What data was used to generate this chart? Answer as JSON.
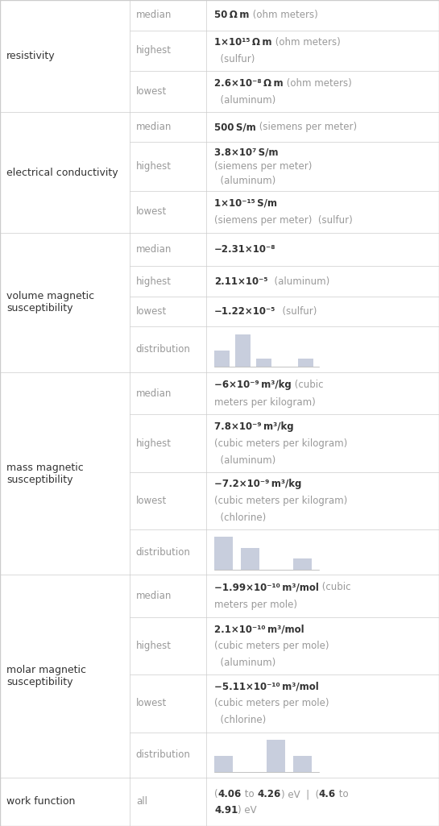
{
  "bg_color": "#ffffff",
  "border_color": "#cccccc",
  "text_dark": "#333333",
  "text_light": "#999999",
  "hist_color": "#c8cedd",
  "c1": 0.295,
  "c2": 0.47,
  "sections": [
    {
      "property": "resistivity",
      "rows": [
        {
          "type": "text",
          "label": "median",
          "bold": "50 Ω m",
          "normal": " (ohm meters)",
          "lines": 1
        },
        {
          "type": "text",
          "label": "highest",
          "bold": "1×10¹⁵ Ω m",
          "normal": " (ohm meters)\n  (sulfur)",
          "lines": 2
        },
        {
          "type": "text",
          "label": "lowest",
          "bold": "2.6×10⁻⁸ Ω m",
          "normal": " (ohm meters)\n  (aluminum)",
          "lines": 2
        }
      ],
      "rh": [
        1.0,
        1.35,
        1.35
      ]
    },
    {
      "property": "electrical conductivity",
      "rows": [
        {
          "type": "text",
          "label": "median",
          "bold": "500 S/m",
          "normal": " (siemens per meter)",
          "lines": 1
        },
        {
          "type": "text",
          "label": "highest",
          "bold": "3.8×10⁷ S/m",
          "normal": "\n(siemens per meter)\n  (aluminum)",
          "lines": 3
        },
        {
          "type": "text",
          "label": "lowest",
          "bold": "1×10⁻¹⁵ S/m",
          "normal": "\n(siemens per meter)  (sulfur)",
          "lines": 2
        }
      ],
      "rh": [
        1.0,
        1.6,
        1.4
      ]
    },
    {
      "property": "volume magnetic\nsusceptibility",
      "rows": [
        {
          "type": "text",
          "label": "median",
          "bold": "−2.31×10⁻⁸",
          "normal": "",
          "lines": 1
        },
        {
          "type": "text",
          "label": "highest",
          "bold": "2.11×10⁻⁵",
          "normal": "  (aluminum)",
          "lines": 1
        },
        {
          "type": "text",
          "label": "lowest",
          "bold": "−1.22×10⁻⁵",
          "normal": "  (sulfur)",
          "lines": 1
        },
        {
          "type": "hist",
          "label": "distribution",
          "hist": [
            2,
            4,
            1,
            0,
            1
          ]
        }
      ],
      "rh": [
        1.1,
        1.0,
        1.0,
        1.5
      ]
    },
    {
      "property": "mass magnetic\nsusceptibility",
      "rows": [
        {
          "type": "text",
          "label": "median",
          "bold": "−6×10⁻⁹ m³/kg",
          "normal": " (cubic\nmeters per kilogram)",
          "lines": 2
        },
        {
          "type": "text",
          "label": "highest",
          "bold": "7.8×10⁻⁹ m³/kg",
          "normal": "\n(cubic meters per kilogram)\n  (aluminum)",
          "lines": 3
        },
        {
          "type": "text",
          "label": "lowest",
          "bold": "−7.2×10⁻⁹ m³/kg",
          "normal": "\n(cubic meters per kilogram)\n  (chlorine)",
          "lines": 3
        },
        {
          "type": "hist",
          "label": "distribution",
          "hist": [
            3,
            2,
            0,
            1
          ]
        }
      ],
      "rh": [
        1.4,
        1.9,
        1.9,
        1.5
      ]
    },
    {
      "property": "molar magnetic\nsusceptibility",
      "rows": [
        {
          "type": "text",
          "label": "median",
          "bold": "−1.99×10⁻¹⁰ m³/mol",
          "normal": " (cubic\nmeters per mole)",
          "lines": 2
        },
        {
          "type": "text",
          "label": "highest",
          "bold": "2.1×10⁻¹⁰ m³/mol",
          "normal": "\n(cubic meters per mole)\n  (aluminum)",
          "lines": 3
        },
        {
          "type": "text",
          "label": "lowest",
          "bold": "−5.11×10⁻¹⁰ m³/mol",
          "normal": "\n(cubic meters per mole)\n  (chlorine)",
          "lines": 3
        },
        {
          "type": "hist",
          "label": "distribution",
          "hist": [
            1,
            0,
            2,
            1
          ]
        }
      ],
      "rh": [
        1.4,
        1.9,
        1.9,
        1.5
      ]
    },
    {
      "property": "work function",
      "rows": [
        {
          "type": "work",
          "label": "all"
        }
      ],
      "rh": [
        1.6
      ]
    }
  ]
}
